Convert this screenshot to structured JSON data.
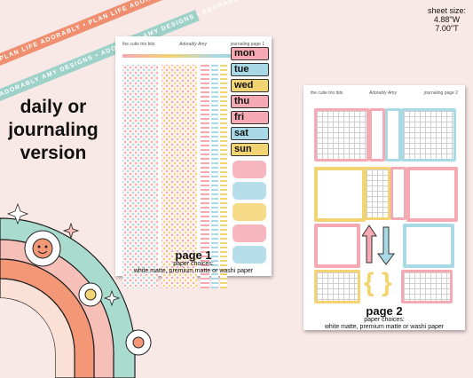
{
  "ribbons": [
    "PLAN LIFE ADORABLY • PLAN LIFE ADORABLY • PLAN LIFE ADORABLY",
    "ADORABLY AMY DESIGNS • ADORABLY AMY DESIGNS • ADORABLY AMY DESIGNS"
  ],
  "headline": [
    "daily or",
    "journaling",
    "version"
  ],
  "sheet_size": {
    "label": "sheet size:",
    "width": "4.88\"W",
    "height": "7.00\"T"
  },
  "page1": {
    "left_title": "the cutie trio bits",
    "brand": "Adorably Amy",
    "right_title": "journaling page 1",
    "days": [
      "mon",
      "tue",
      "wed",
      "thu",
      "fri",
      "sat",
      "sun"
    ],
    "caption": "page 1",
    "paper_label": "paper choices:",
    "paper_options": "white matte, premium matte or washi paper"
  },
  "page2": {
    "left_title": "the cutie trio bits",
    "brand": "Adorably Amy",
    "right_title": "journaling page 2",
    "caption": "page 2",
    "paper_label": "paper choices:",
    "paper_options": "white matte, premium matte or washi paper"
  },
  "colors": {
    "background": "#f8e9e7",
    "pink": "#f4a9b3",
    "blue": "#a9d8e6",
    "yellow": "#f3d472",
    "mint": "#9ed2c9",
    "coral": "#f08f70"
  }
}
